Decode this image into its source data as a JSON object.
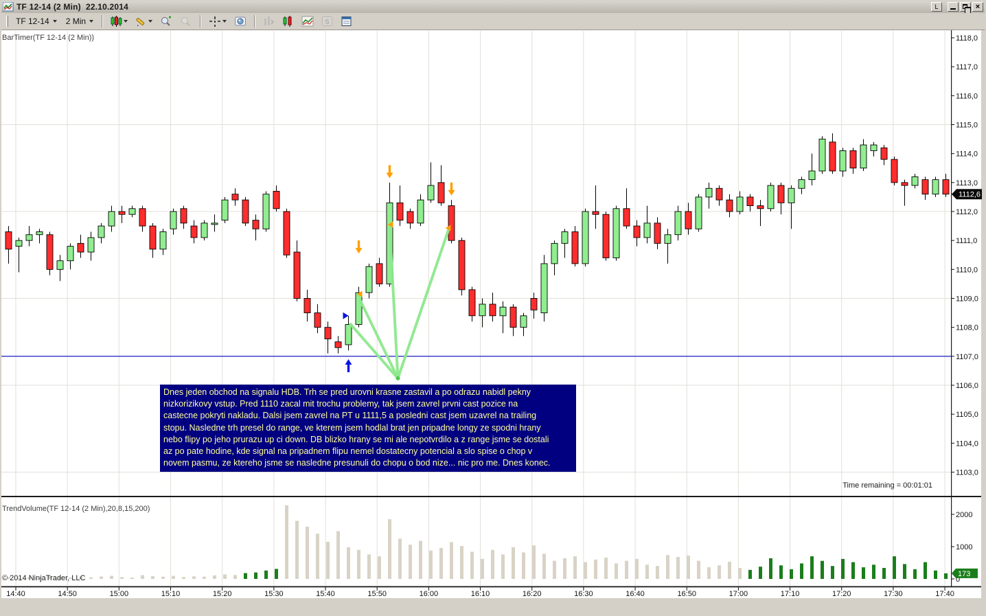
{
  "window": {
    "title": "TF 12-14 (2 Min)  22.10.2014",
    "controls": {
      "link": "L",
      "minimize": "minimize",
      "restore": "restore",
      "close": "close"
    }
  },
  "toolbar": {
    "instrument": "TF 12-14",
    "interval": "2 Min",
    "icons": [
      "chart-style-icon",
      "drawing-tools-icon",
      "zoom-in-icon",
      "zoom-out-icon",
      "crosshair-icon",
      "snapshot-icon",
      "bar-spacing-icon",
      "chart-type-icon",
      "indicators-icon",
      "strategies-icon",
      "properties-icon"
    ]
  },
  "panels": {
    "price_indicator_label": "BarTimer(TF 12-14 (2 Min))",
    "volume_indicator_label": "TrendVolume(TF 12-14 (2 Min),20,8,15,200)",
    "copyright": "© 2014 NinjaTrader, LLC",
    "time_remaining": "Time remaining = 00:01:01",
    "price_marker": "1112,6",
    "volume_marker": "173"
  },
  "axes": {
    "price_labels": [
      "1118,0",
      "1117,0",
      "1116,0",
      "1115,0",
      "1114,0",
      "1113,0",
      "1112,0",
      "1111,0",
      "1110,0",
      "1109,0",
      "1108,0",
      "1107,0",
      "1106,0",
      "1105,0",
      "1104,0",
      "1103,0"
    ],
    "price_gridlines": [
      1115,
      1112,
      1109,
      1106,
      1103
    ],
    "volume_labels": [
      {
        "v": 2000,
        "label": "2000"
      },
      {
        "v": 1000,
        "label": "1000"
      },
      {
        "v": 0,
        "label": "0"
      }
    ],
    "time_labels": [
      "14:40",
      "14:50",
      "15:00",
      "15:10",
      "15:20",
      "15:30",
      "15:40",
      "15:50",
      "16:00",
      "16:10",
      "16:20",
      "16:30",
      "16:40",
      "16:50",
      "17:00",
      "17:10",
      "17:20",
      "17:30",
      "17:40"
    ]
  },
  "note": {
    "lines": [
      "Dnes jeden obchod na signalu HDB. Trh se pred urovni krasne zastavil a po odrazu nabidl pekny",
      "nizkorizikovy vstup. Pred 1110 zacal mit trochu problemy, tak jsem zavrel prvni cast pozice na",
      "castecne pokryti nakladu. Dalsi jsem zavrel na PT u 1111,5 a posledni cast jsem uzavrel na trailing",
      "stopu. Nasledne trh presel do range, ve kterem jsem hodlal brat jen pripadne longy ze spodni hrany",
      "nebo flipy po jeho prurazu up ci down. DB blizko hrany se mi ale nepotvrdilo a z range jsme se dostali",
      "az po pate hodine, kde signal na pripadnem flipu nemel dostatecny potencial a slo spise o chop v",
      "novem pasmu, ze ktereho jsme se nasledne presunuli do chopu o bod nize... nic pro me. Dnes konec."
    ]
  },
  "annotations": {
    "horizontal_line_price": 1107.0,
    "trend_lines": [
      {
        "from": {
          "i": 37.8,
          "p": 1106.24
        },
        "to": {
          "i": 33.2,
          "p": 1108.11
        }
      },
      {
        "from": {
          "i": 37.8,
          "p": 1106.24
        },
        "to": {
          "i": 34.0,
          "p": 1109.04
        }
      },
      {
        "from": {
          "i": 37.8,
          "p": 1106.24
        },
        "to": {
          "i": 37.0,
          "p": 1111.5
        }
      },
      {
        "from": {
          "i": 37.8,
          "p": 1106.24
        },
        "to": {
          "i": 42.7,
          "p": 1111.36
        }
      }
    ],
    "arrows": [
      {
        "type": "down",
        "i": 34,
        "p": 1110.55
      },
      {
        "type": "down",
        "i": 37,
        "p": 1113.15
      },
      {
        "type": "down",
        "i": 43,
        "p": 1112.55
      },
      {
        "type": "up",
        "i": 33,
        "p": 1106.9
      },
      {
        "type": "right",
        "i": 33,
        "p": 1108.4
      }
    ],
    "exit_markers": [
      {
        "i": 34.0,
        "p": 1109.15
      },
      {
        "i": 37.0,
        "p": 1111.55
      },
      {
        "i": 42.6,
        "p": 1111.43
      }
    ]
  },
  "colors": {
    "up_candle": "#90ee90",
    "down_candle": "#ff2d2d",
    "candle_outline": "#000000",
    "grid": "#e2dfd8",
    "blue_line": "#0000bb",
    "vol_neutral": "#d8d3c5",
    "vol_up": "#1b7e1b",
    "note_bg": "#000080",
    "note_text": "#ffff9e",
    "trend_line": "#8ee88e",
    "arrow_orange": "#ff9e00",
    "arrow_blue": "#0515e8",
    "price_tag_bg": "#0a0a0a",
    "vol_tag_bg": "#1b7e1b"
  },
  "chart_data": {
    "type": "candlestick",
    "instrument": "TF 12-14",
    "interval": "2 Min",
    "date": "22.10.2014",
    "price_axis_range": [
      1102.6,
      1118.25
    ],
    "volume_axis_range": [
      0,
      2500
    ],
    "legend": "columns: time, open, high, low, close, volume, volume_color(n=neutral gray, g=green)",
    "candles": [
      [
        "14:38",
        1111.3,
        1111.5,
        1110.2,
        1110.7,
        60,
        "n"
      ],
      [
        "14:40",
        1110.8,
        1111.1,
        1109.9,
        1111.0,
        35,
        "n"
      ],
      [
        "14:42",
        1111.0,
        1111.5,
        1110.8,
        1111.2,
        45,
        "n"
      ],
      [
        "14:44",
        1111.2,
        1111.4,
        1110.9,
        1111.3,
        30,
        "n"
      ],
      [
        "14:46",
        1111.2,
        1111.3,
        1109.8,
        1110.0,
        85,
        "n"
      ],
      [
        "14:48",
        1110.0,
        1110.5,
        1109.6,
        1110.3,
        55,
        "n"
      ],
      [
        "14:50",
        1110.3,
        1110.9,
        1110.0,
        1110.8,
        40,
        "n"
      ],
      [
        "14:52",
        1110.9,
        1111.2,
        1110.4,
        1110.6,
        65,
        "n"
      ],
      [
        "14:54",
        1110.6,
        1111.3,
        1110.3,
        1111.1,
        50,
        "n"
      ],
      [
        "14:56",
        1111.1,
        1111.6,
        1110.9,
        1111.5,
        75,
        "n"
      ],
      [
        "14:58",
        1111.5,
        1112.2,
        1111.3,
        1112.0,
        95,
        "n"
      ],
      [
        "15:00",
        1112.0,
        1112.2,
        1111.6,
        1111.9,
        55,
        "n"
      ],
      [
        "15:02",
        1111.9,
        1112.2,
        1111.8,
        1112.1,
        45,
        "n"
      ],
      [
        "15:04",
        1112.1,
        1112.2,
        1111.3,
        1111.5,
        115,
        "n"
      ],
      [
        "15:06",
        1111.5,
        1111.6,
        1110.4,
        1110.7,
        85,
        "n"
      ],
      [
        "15:08",
        1110.7,
        1111.4,
        1110.5,
        1111.3,
        70,
        "n"
      ],
      [
        "15:10",
        1111.4,
        1112.1,
        1111.2,
        1112.0,
        95,
        "n"
      ],
      [
        "15:12",
        1112.1,
        1112.2,
        1111.4,
        1111.6,
        60,
        "n"
      ],
      [
        "15:14",
        1111.5,
        1111.7,
        1110.9,
        1111.1,
        80,
        "n"
      ],
      [
        "15:16",
        1111.1,
        1111.7,
        1111.0,
        1111.6,
        70,
        "n"
      ],
      [
        "15:18",
        1111.6,
        1111.9,
        1111.3,
        1111.6,
        110,
        "n"
      ],
      [
        "15:20",
        1111.7,
        1112.5,
        1111.6,
        1112.4,
        140,
        "n"
      ],
      [
        "15:22",
        1112.6,
        1112.8,
        1112.2,
        1112.4,
        120,
        "n"
      ],
      [
        "15:24",
        1112.4,
        1112.5,
        1111.5,
        1111.6,
        180,
        "g"
      ],
      [
        "15:26",
        1111.7,
        1111.9,
        1111.0,
        1111.4,
        200,
        "g"
      ],
      [
        "15:28",
        1111.4,
        1112.7,
        1111.3,
        1112.6,
        260,
        "g"
      ],
      [
        "15:30",
        1112.7,
        1112.9,
        1112.0,
        1112.1,
        310,
        "g"
      ],
      [
        "15:32",
        1112.0,
        1112.1,
        1110.4,
        1110.5,
        2280,
        "n"
      ],
      [
        "15:34",
        1110.6,
        1111.0,
        1108.9,
        1109.0,
        1800,
        "n"
      ],
      [
        "15:36",
        1109.0,
        1109.3,
        1108.2,
        1108.5,
        1620,
        "n"
      ],
      [
        "15:38",
        1108.5,
        1108.8,
        1107.8,
        1108.0,
        1400,
        "n"
      ],
      [
        "15:40",
        1108.0,
        1108.2,
        1107.1,
        1107.6,
        1150,
        "n"
      ],
      [
        "15:42",
        1107.5,
        1107.7,
        1107.1,
        1107.3,
        1480,
        "n"
      ],
      [
        "15:44",
        1107.4,
        1108.4,
        1107.2,
        1108.1,
        980,
        "n"
      ],
      [
        "15:46",
        1108.1,
        1109.4,
        1108.0,
        1109.2,
        900,
        "n"
      ],
      [
        "15:48",
        1109.2,
        1110.2,
        1109.0,
        1110.1,
        760,
        "n"
      ],
      [
        "15:50",
        1110.2,
        1110.4,
        1109.4,
        1109.5,
        700,
        "n"
      ],
      [
        "15:52",
        1109.5,
        1113.0,
        1109.4,
        1112.3,
        1850,
        "n"
      ],
      [
        "15:54",
        1112.3,
        1112.9,
        1111.5,
        1111.7,
        1250,
        "n"
      ],
      [
        "15:56",
        1112.0,
        1112.1,
        1111.4,
        1111.6,
        1060,
        "n"
      ],
      [
        "15:58",
        1111.6,
        1112.6,
        1111.5,
        1112.4,
        1180,
        "n"
      ],
      [
        "16:00",
        1112.4,
        1113.7,
        1112.3,
        1112.9,
        880,
        "n"
      ],
      [
        "16:02",
        1113.0,
        1113.6,
        1112.2,
        1112.3,
        960,
        "n"
      ],
      [
        "16:04",
        1112.2,
        1112.4,
        1110.9,
        1111.0,
        1140,
        "n"
      ],
      [
        "16:06",
        1111.0,
        1111.1,
        1109.1,
        1109.3,
        1020,
        "n"
      ],
      [
        "16:08",
        1109.3,
        1109.4,
        1108.2,
        1108.4,
        840,
        "n"
      ],
      [
        "16:10",
        1108.4,
        1109.0,
        1108.0,
        1108.8,
        620,
        "n"
      ],
      [
        "16:12",
        1108.8,
        1109.2,
        1108.2,
        1108.4,
        900,
        "n"
      ],
      [
        "16:14",
        1108.4,
        1108.9,
        1107.8,
        1108.7,
        760,
        "n"
      ],
      [
        "16:16",
        1108.7,
        1108.8,
        1107.7,
        1108.0,
        980,
        "n"
      ],
      [
        "16:18",
        1108.0,
        1108.5,
        1107.7,
        1108.4,
        820,
        "n"
      ],
      [
        "16:20",
        1109.0,
        1109.2,
        1108.3,
        1108.6,
        1040,
        "n"
      ],
      [
        "16:22",
        1108.5,
        1110.5,
        1108.2,
        1110.2,
        780,
        "n"
      ],
      [
        "16:24",
        1110.2,
        1111.0,
        1109.8,
        1110.9,
        560,
        "n"
      ],
      [
        "16:26",
        1110.9,
        1111.4,
        1110.4,
        1111.3,
        640,
        "n"
      ],
      [
        "16:28",
        1111.3,
        1111.5,
        1110.1,
        1110.2,
        700,
        "n"
      ],
      [
        "16:30",
        1110.2,
        1112.1,
        1110.1,
        1112.0,
        520,
        "n"
      ],
      [
        "16:32",
        1112.0,
        1112.9,
        1111.4,
        1111.9,
        600,
        "n"
      ],
      [
        "16:34",
        1111.9,
        1112.0,
        1110.3,
        1110.4,
        660,
        "n"
      ],
      [
        "16:36",
        1110.4,
        1112.2,
        1110.3,
        1112.1,
        480,
        "n"
      ],
      [
        "16:38",
        1112.1,
        1112.8,
        1111.4,
        1111.5,
        560,
        "n"
      ],
      [
        "16:40",
        1111.5,
        1111.7,
        1110.8,
        1111.1,
        620,
        "n"
      ],
      [
        "16:42",
        1111.1,
        1112.2,
        1110.9,
        1111.6,
        440,
        "n"
      ],
      [
        "16:44",
        1111.6,
        1111.8,
        1110.7,
        1110.9,
        400,
        "n"
      ],
      [
        "16:46",
        1110.9,
        1111.4,
        1110.2,
        1111.2,
        740,
        "n"
      ],
      [
        "16:48",
        1111.2,
        1112.2,
        1111.0,
        1112.0,
        680,
        "n"
      ],
      [
        "16:50",
        1112.0,
        1112.3,
        1111.2,
        1111.4,
        720,
        "n"
      ],
      [
        "16:52",
        1111.4,
        1112.6,
        1111.3,
        1112.5,
        560,
        "n"
      ],
      [
        "16:54",
        1112.5,
        1113.0,
        1112.1,
        1112.8,
        360,
        "n"
      ],
      [
        "16:56",
        1112.8,
        1112.9,
        1112.2,
        1112.4,
        420,
        "n"
      ],
      [
        "16:58",
        1112.4,
        1112.6,
        1111.8,
        1112.0,
        530,
        "n"
      ],
      [
        "17:00",
        1112.0,
        1112.7,
        1111.9,
        1112.5,
        340,
        "n"
      ],
      [
        "17:02",
        1112.5,
        1112.6,
        1112.0,
        1112.2,
        280,
        "g"
      ],
      [
        "17:04",
        1112.2,
        1112.4,
        1111.5,
        1112.1,
        380,
        "g"
      ],
      [
        "17:06",
        1112.1,
        1113.0,
        1112.0,
        1112.9,
        640,
        "g"
      ],
      [
        "17:08",
        1112.9,
        1113.0,
        1111.9,
        1112.3,
        420,
        "g"
      ],
      [
        "17:10",
        1112.3,
        1112.9,
        1111.4,
        1112.8,
        300,
        "g"
      ],
      [
        "17:12",
        1112.8,
        1113.2,
        1112.6,
        1113.1,
        480,
        "g"
      ],
      [
        "17:14",
        1113.1,
        1114.0,
        1112.9,
        1113.4,
        700,
        "g"
      ],
      [
        "17:16",
        1113.4,
        1114.6,
        1113.3,
        1114.5,
        560,
        "g"
      ],
      [
        "17:18",
        1114.4,
        1114.7,
        1113.3,
        1113.4,
        400,
        "g"
      ],
      [
        "17:20",
        1113.4,
        1114.2,
        1113.2,
        1114.1,
        620,
        "g"
      ],
      [
        "17:22",
        1114.1,
        1114.2,
        1113.3,
        1113.5,
        520,
        "g"
      ],
      [
        "17:24",
        1113.5,
        1114.5,
        1113.4,
        1114.3,
        360,
        "g"
      ],
      [
        "17:26",
        1114.1,
        1114.4,
        1113.9,
        1114.3,
        440,
        "g"
      ],
      [
        "17:28",
        1114.2,
        1114.3,
        1113.6,
        1113.8,
        340,
        "g"
      ],
      [
        "17:30",
        1113.8,
        1113.9,
        1112.9,
        1113.0,
        700,
        "g"
      ],
      [
        "17:32",
        1113.0,
        1113.1,
        1112.2,
        1112.9,
        460,
        "g"
      ],
      [
        "17:34",
        1112.9,
        1113.3,
        1112.8,
        1113.2,
        300,
        "g"
      ],
      [
        "17:36",
        1113.1,
        1113.2,
        1112.4,
        1112.6,
        520,
        "g"
      ],
      [
        "17:38",
        1112.6,
        1113.2,
        1112.5,
        1113.1,
        260,
        "g"
      ],
      [
        "17:40",
        1113.1,
        1113.3,
        1112.5,
        1112.6,
        173,
        "g"
      ]
    ]
  }
}
